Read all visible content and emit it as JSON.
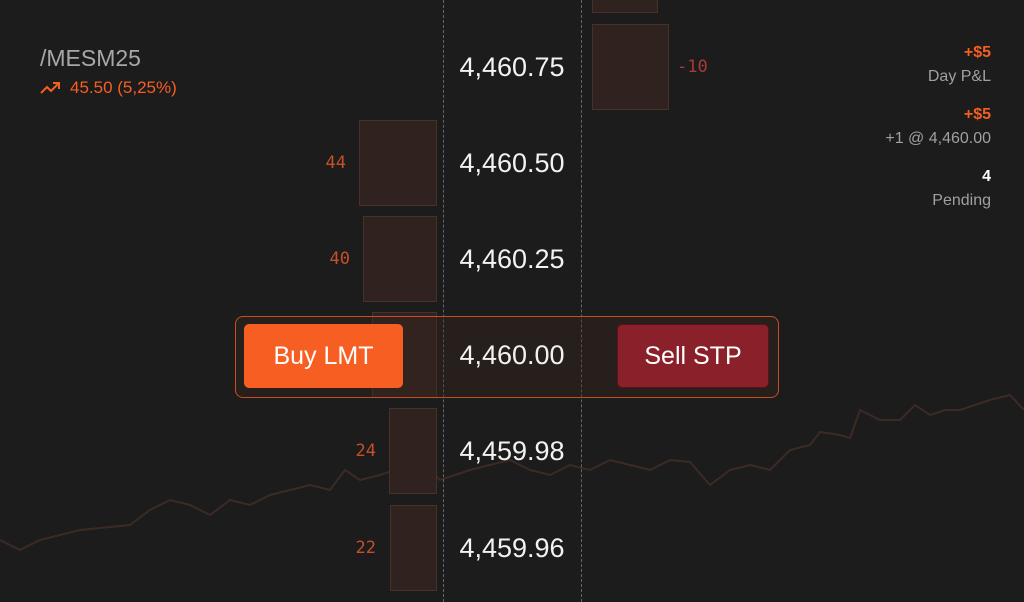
{
  "symbol": {
    "name": "/MESM25",
    "change": "45.50 (5,25%)",
    "trend_icon": "trending-up-icon"
  },
  "ladder": {
    "rows": [
      {
        "price": "4,460.75",
        "volume": "-10",
        "side": "ask"
      },
      {
        "price": "4,460.50",
        "volume": "44",
        "side": "bid"
      },
      {
        "price": "4,460.25",
        "volume": "40",
        "side": "bid"
      },
      {
        "price": "4,460.00",
        "volume": "",
        "side": "bid"
      },
      {
        "price": "4,459.98",
        "volume": "24",
        "side": "bid"
      },
      {
        "price": "4,459.96",
        "volume": "22",
        "side": "bid"
      }
    ]
  },
  "actions": {
    "buy": "Buy LMT",
    "sell": "Sell STP"
  },
  "stats": {
    "day_pnl_value": "+$5",
    "day_pnl_label": "Day P&L",
    "position_value": "+$5",
    "position_label": "+1 @ 4,460.00",
    "pending_value": "4",
    "pending_label": "Pending"
  },
  "colors": {
    "accent": "#f65e22",
    "sell": "#8a2029",
    "background": "#1c1c1c"
  }
}
